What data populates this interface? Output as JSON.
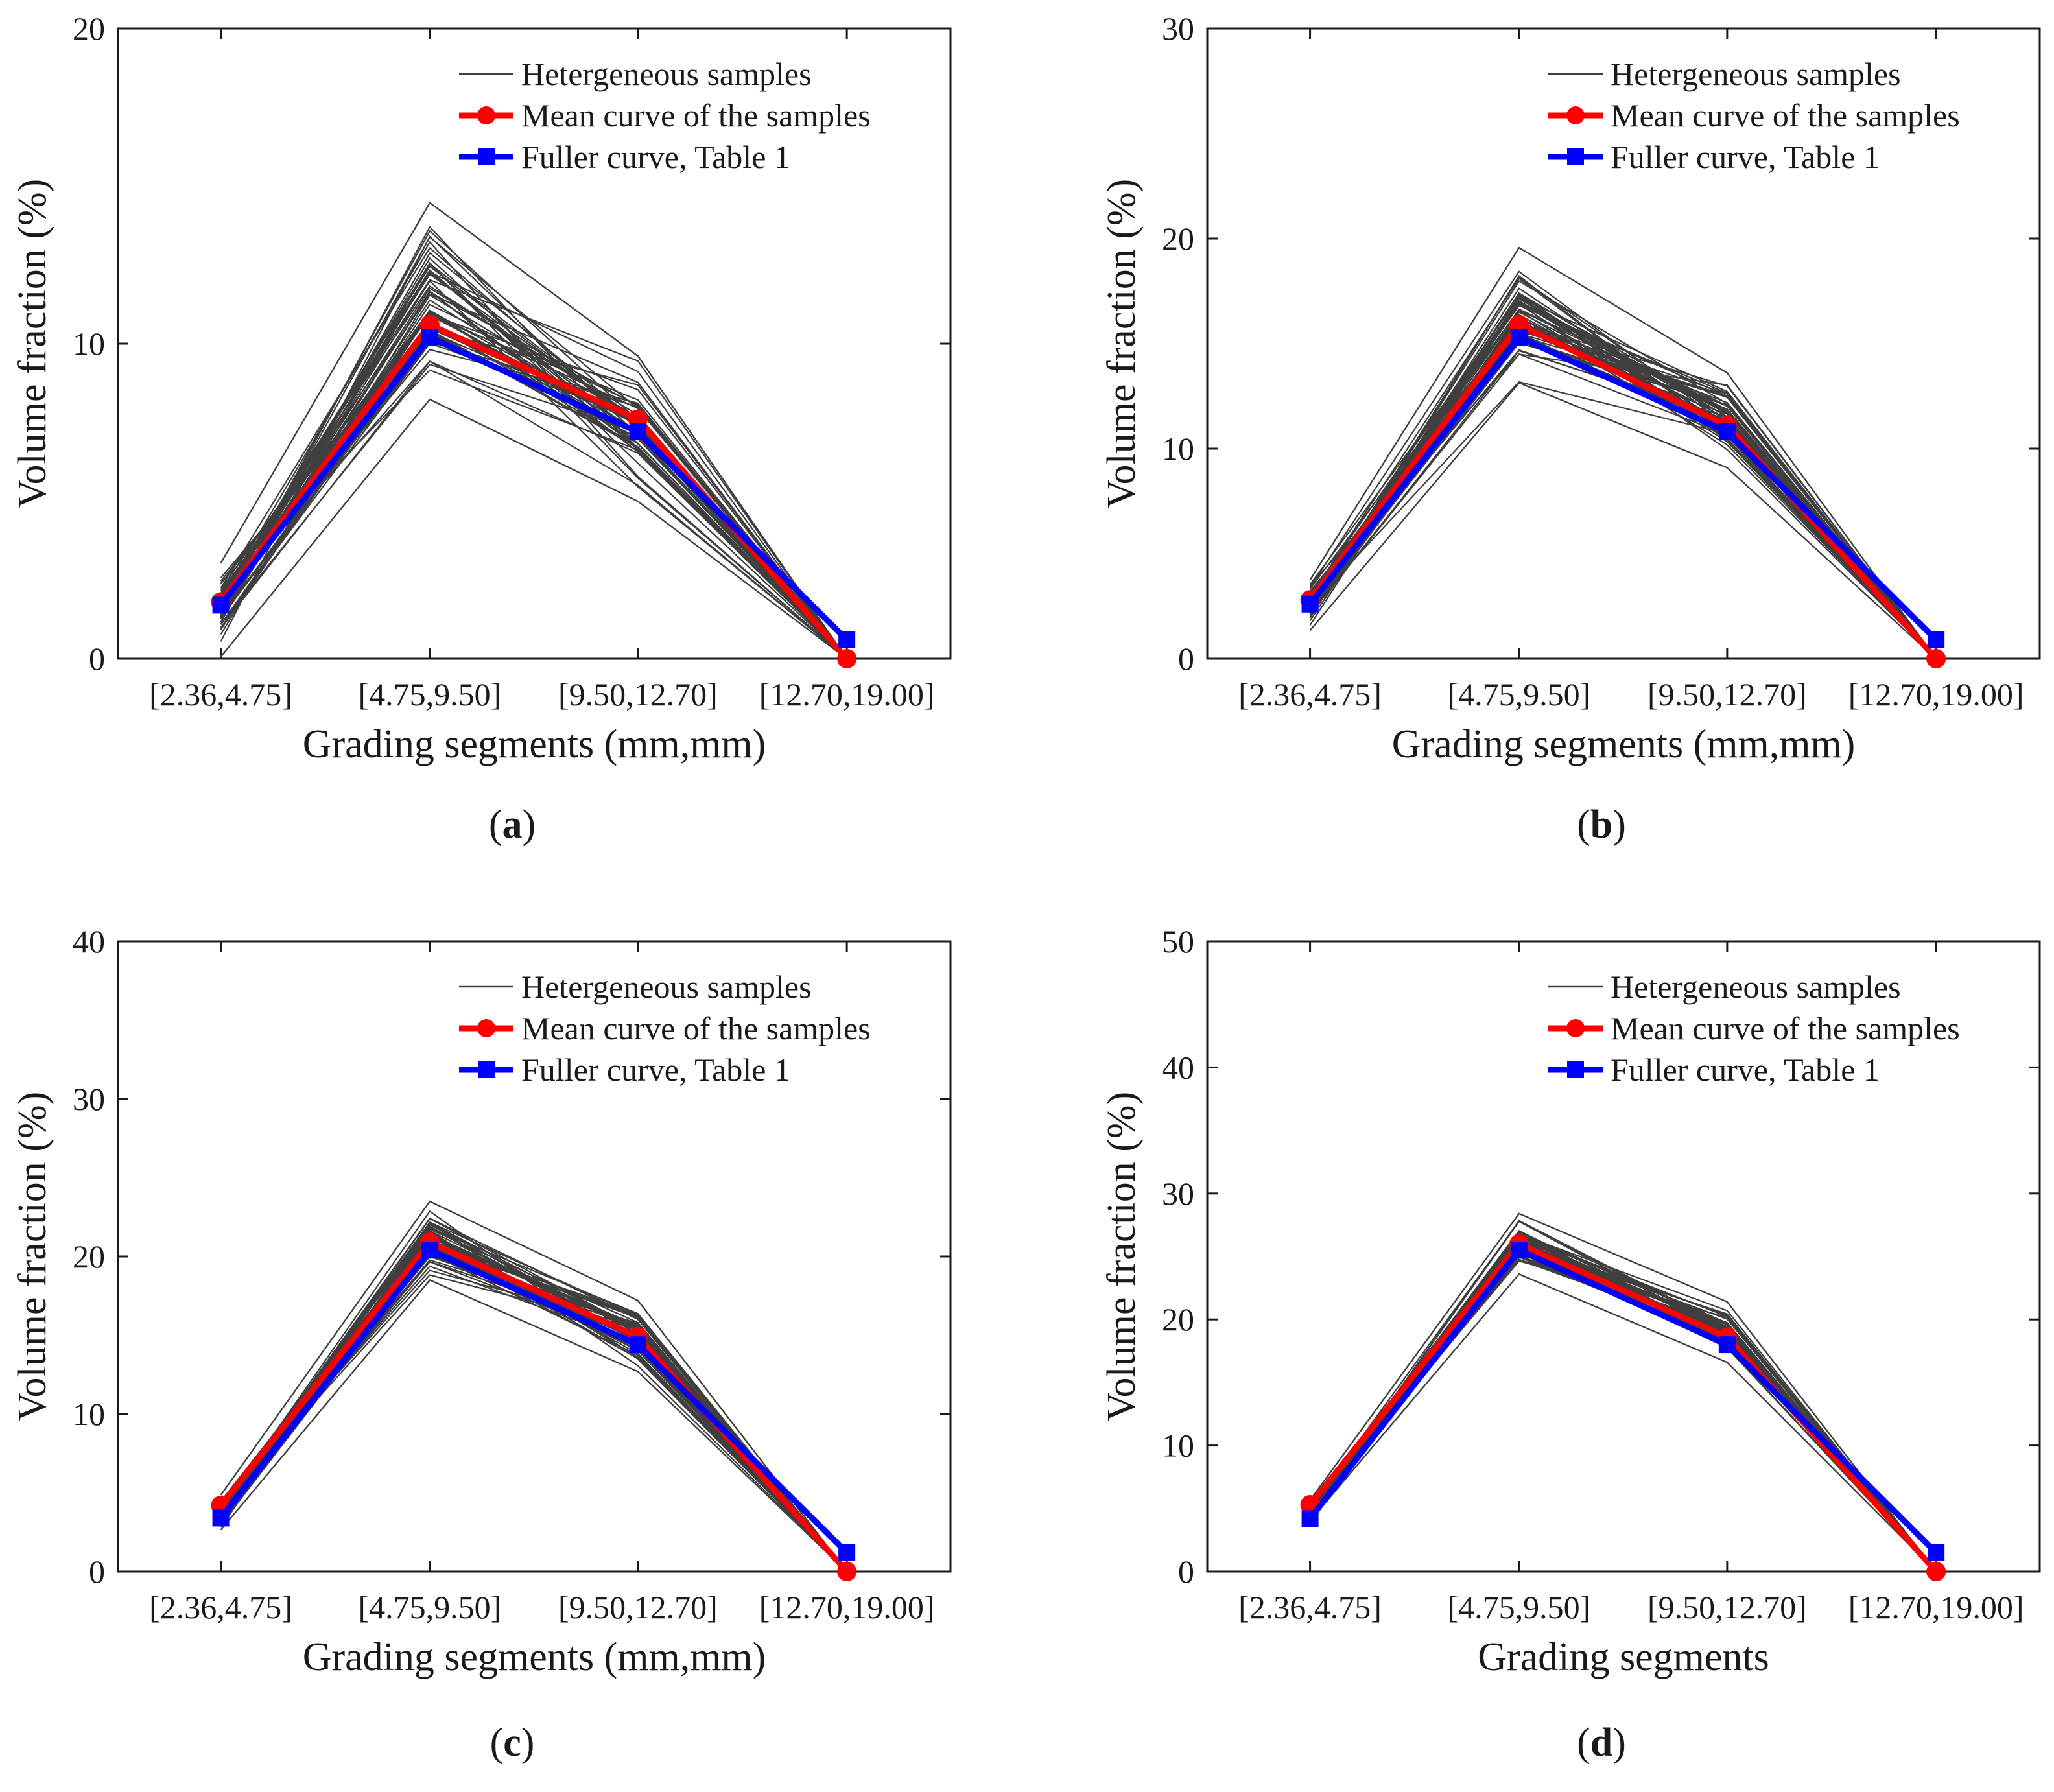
{
  "figure": {
    "colors": {
      "samples": "#3f3f3f",
      "mean": "#ff0000",
      "fuller": "#0000ff",
      "axis": "#1a1a1a"
    }
  },
  "chart_data": [
    {
      "type": "line",
      "panel": "a",
      "caption_open": "(",
      "caption_letter": "a",
      "caption_close": ")",
      "xlabel": "Grading segments (mm,mm)",
      "ylabel": "Volume fraction (%)",
      "categories": [
        "[2.36,4.75]",
        "[4.75,9.50]",
        "[9.50,12.70]",
        "[12.70,19.00]"
      ],
      "ylim": [
        0,
        20
      ],
      "yticks": [
        "0",
        "10",
        "20"
      ],
      "legend": [
        "Hetergeneous samples",
        "Mean curve of the samples",
        "Fuller curve, Table 1"
      ],
      "legend_position": "top-right",
      "sample_band": {
        "min": [
          0.0,
          8.1,
          4.9,
          0.0
        ],
        "max": [
          3.1,
          14.6,
          9.7,
          0.0
        ],
        "count": 60
      },
      "series": [
        {
          "name": "Mean curve of the samples",
          "values": [
            1.8,
            10.6,
            7.6,
            0.0
          ]
        },
        {
          "name": "Fuller curve, Table 1",
          "values": [
            1.7,
            10.2,
            7.2,
            0.6
          ]
        }
      ]
    },
    {
      "type": "line",
      "panel": "b",
      "caption_open": "(",
      "caption_letter": "b",
      "caption_close": ")",
      "xlabel": "Grading segments (mm,mm)",
      "ylabel": "Volume fraction (%)",
      "categories": [
        "[2.36,4.75]",
        "[4.75,9.50]",
        "[9.50,12.70]",
        "[12.70,19.00]"
      ],
      "ylim": [
        0,
        30
      ],
      "yticks": [
        "0",
        "10",
        "20",
        "30"
      ],
      "legend": [
        "Hetergeneous samples",
        "Mean curve of the samples",
        "Fuller curve, Table 1"
      ],
      "legend_position": "top-right",
      "sample_band": {
        "min": [
          1.3,
          13.0,
          9.0,
          0.0
        ],
        "max": [
          3.8,
          19.7,
          13.7,
          0.0
        ],
        "count": 60
      },
      "series": [
        {
          "name": "Mean curve of the samples",
          "values": [
            2.8,
            15.9,
            11.1,
            0.0
          ]
        },
        {
          "name": "Fuller curve, Table 1",
          "values": [
            2.6,
            15.3,
            10.8,
            0.9
          ]
        }
      ]
    },
    {
      "type": "line",
      "panel": "c",
      "caption_open": "(",
      "caption_letter": "c",
      "caption_close": ")",
      "xlabel": "Grading segments (mm,mm)",
      "ylabel": "Volume fraction (%)",
      "categories": [
        "[2.36,4.75]",
        "[4.75,9.50]",
        "[9.50,12.70]",
        "[12.70,19.00]"
      ],
      "ylim": [
        0,
        40
      ],
      "yticks": [
        "0",
        "10",
        "20",
        "30",
        "40"
      ],
      "legend": [
        "Hetergeneous samples",
        "Mean curve of the samples",
        "Fuller curve, Table 1"
      ],
      "legend_position": "top-right",
      "sample_band": {
        "min": [
          2.6,
          18.4,
          12.6,
          0.0
        ],
        "max": [
          4.9,
          23.6,
          17.3,
          0.0
        ],
        "count": 60
      },
      "series": [
        {
          "name": "Mean curve of the samples",
          "values": [
            4.2,
            20.9,
            14.9,
            0.0
          ]
        },
        {
          "name": "Fuller curve, Table 1",
          "values": [
            3.4,
            20.4,
            14.4,
            1.2
          ]
        }
      ]
    },
    {
      "type": "line",
      "panel": "d",
      "caption_open": "(",
      "caption_letter": "d",
      "caption_close": ")",
      "xlabel": "Grading segments",
      "ylabel": "Volume fraction (%)",
      "categories": [
        "[2.36,4.75]",
        "[4.75,9.50]",
        "[9.50,12.70]",
        "[12.70,19.00]"
      ],
      "ylim": [
        0,
        50
      ],
      "yticks": [
        "0",
        "10",
        "20",
        "30",
        "40",
        "50"
      ],
      "legend": [
        "Hetergeneous samples",
        "Mean curve of the samples",
        "Fuller curve, Table 1"
      ],
      "legend_position": "top-right",
      "sample_band": {
        "min": [
          4.0,
          23.5,
          16.5,
          0.0
        ],
        "max": [
          5.7,
          28.5,
          21.5,
          0.0
        ],
        "count": 60
      },
      "series": [
        {
          "name": "Mean curve of the samples",
          "values": [
            5.3,
            26.0,
            18.6,
            0.0
          ]
        },
        {
          "name": "Fuller curve, Table 1",
          "values": [
            4.2,
            25.5,
            18.0,
            1.5
          ]
        }
      ]
    }
  ]
}
